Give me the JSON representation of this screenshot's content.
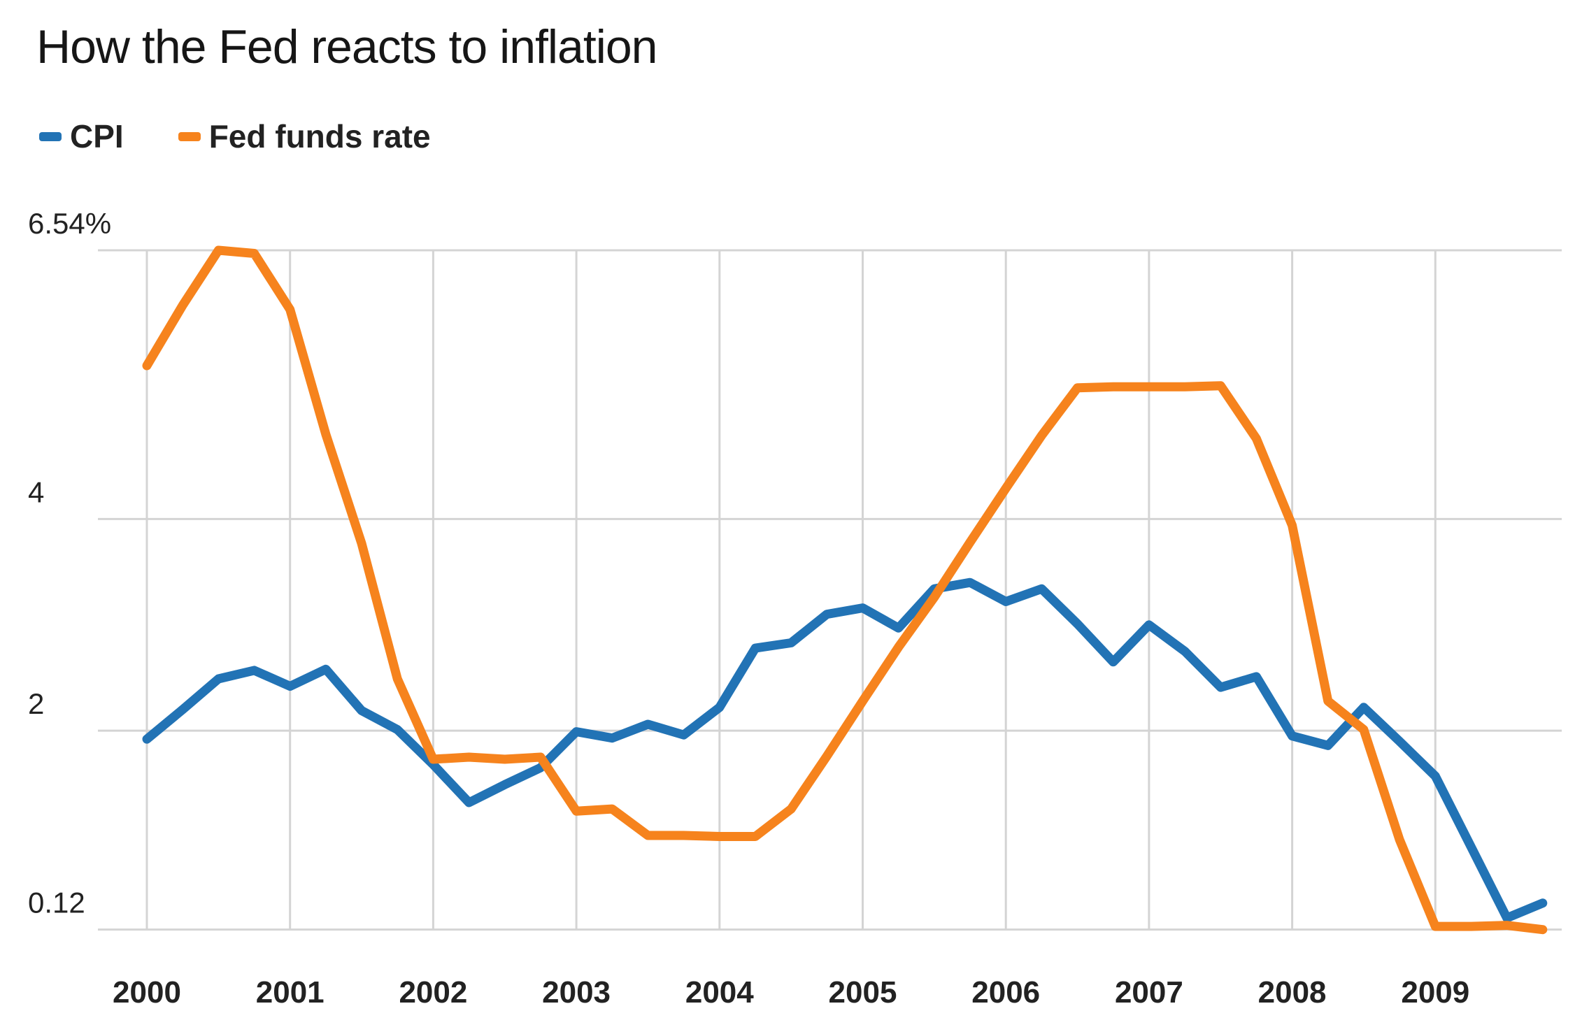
{
  "title": "How the Fed reacts to inflation",
  "legend": {
    "items": [
      {
        "label": "CPI",
        "color": "#2273b5"
      },
      {
        "label": "Fed funds rate",
        "color": "#f6831d"
      }
    ]
  },
  "chart_data": {
    "type": "line",
    "title": "How the Fed reacts to inflation",
    "xlabel": "",
    "ylabel": "",
    "y_unit": "percent",
    "xlim": [
      2000,
      2009.75
    ],
    "ylim": [
      0.12,
      6.54
    ],
    "grid": true,
    "legend_position": "top-left",
    "x_ticks": [
      {
        "label": "2000",
        "value": 2000
      },
      {
        "label": "2001",
        "value": 2001
      },
      {
        "label": "2002",
        "value": 2002
      },
      {
        "label": "2003",
        "value": 2003
      },
      {
        "label": "2004",
        "value": 2004
      },
      {
        "label": "2005",
        "value": 2005
      },
      {
        "label": "2006",
        "value": 2006
      },
      {
        "label": "2007",
        "value": 2007
      },
      {
        "label": "2008",
        "value": 2008
      },
      {
        "label": "2009",
        "value": 2009
      }
    ],
    "y_ticks": [
      {
        "label": "6.54%",
        "value": 6.54
      },
      {
        "label": "4",
        "value": 4
      },
      {
        "label": "2",
        "value": 2
      },
      {
        "label": "0.12",
        "value": 0.12
      }
    ],
    "x": [
      2000,
      2000.25,
      2000.5,
      2000.75,
      2001,
      2001.25,
      2001.5,
      2001.75,
      2002,
      2002.25,
      2002.5,
      2002.75,
      2003,
      2003.25,
      2003.5,
      2003.75,
      2004,
      2004.25,
      2004.5,
      2004.75,
      2005,
      2005.25,
      2005.5,
      2005.75,
      2006,
      2006.25,
      2006.5,
      2006.75,
      2007,
      2007.25,
      2007.5,
      2007.75,
      2008,
      2008.25,
      2008.5,
      2008.75,
      2009,
      2009.25,
      2009.5,
      2009.75
    ],
    "series": [
      {
        "name": "CPI",
        "color": "#2273b5",
        "values": [
          1.92,
          2.2,
          2.49,
          2.57,
          2.42,
          2.58,
          2.19,
          2.01,
          1.68,
          1.32,
          1.49,
          1.65,
          1.99,
          1.93,
          2.06,
          1.96,
          2.22,
          2.78,
          2.83,
          3.1,
          3.16,
          2.97,
          3.34,
          3.4,
          3.22,
          3.34,
          3.01,
          2.65,
          3.0,
          2.75,
          2.41,
          2.51,
          1.95,
          1.86,
          2.22,
          1.9,
          1.57,
          0.9,
          0.23,
          0.37
        ]
      },
      {
        "name": "Fed funds rate",
        "color": "#f6831d",
        "values": [
          5.45,
          6.02,
          6.54,
          6.51,
          5.98,
          4.8,
          3.77,
          2.49,
          1.73,
          1.75,
          1.73,
          1.75,
          1.24,
          1.26,
          1.01,
          1.01,
          1.0,
          1.0,
          1.26,
          1.76,
          2.28,
          2.79,
          3.26,
          3.78,
          4.29,
          4.79,
          5.24,
          5.25,
          5.25,
          5.25,
          5.26,
          4.76,
          3.94,
          2.28,
          2.01,
          0.97,
          0.15,
          0.15,
          0.16,
          0.12
        ]
      }
    ]
  }
}
